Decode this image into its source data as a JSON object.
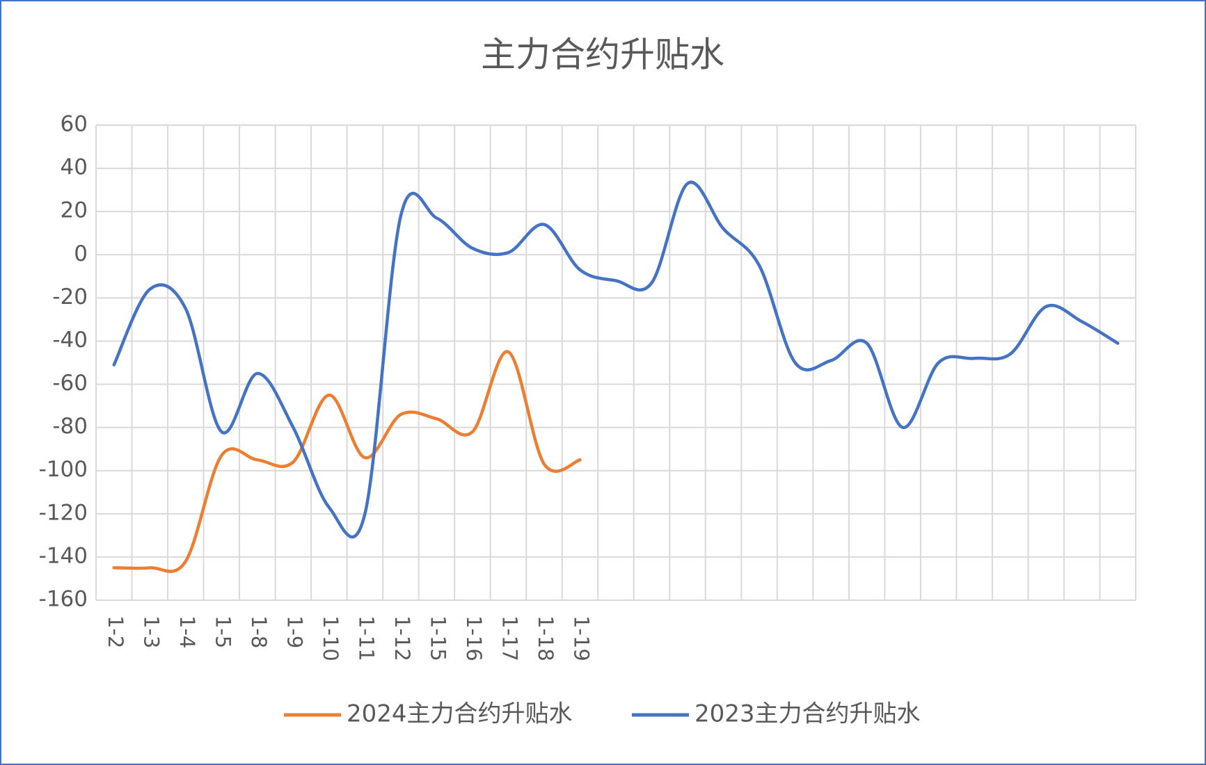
{
  "chart_data": {
    "type": "line",
    "title": "主力合约升贴水",
    "categories": [
      "1-2",
      "1-3",
      "1-4",
      "1-5",
      "1-8",
      "1-9",
      "1-10",
      "1-11",
      "1-12",
      "1-15",
      "1-16",
      "1-17",
      "1-18",
      "1-19",
      null,
      null,
      null,
      null,
      null,
      null,
      null,
      null,
      null,
      null,
      null,
      null,
      null,
      null,
      null
    ],
    "series": [
      {
        "name": "2024主力合约升贴水",
        "color": "#ed7d31",
        "values": [
          -145,
          -145,
          -142,
          -93,
          -95,
          -96,
          -65,
          -94,
          -74,
          -76,
          -82,
          -45,
          -97,
          -95,
          null,
          null,
          null,
          null,
          null,
          null,
          null,
          null,
          null,
          null,
          null,
          null,
          null,
          null,
          null
        ]
      },
      {
        "name": "2023主力合约升贴水",
        "color": "#4472c4",
        "values": [
          -51,
          -16,
          -25,
          -82,
          -55,
          -80,
          -117,
          -120,
          18,
          17,
          3,
          1,
          14,
          -7,
          -12,
          -13,
          33,
          12,
          -5,
          -50,
          -49,
          -41,
          -80,
          -50,
          -48,
          -46,
          -24,
          -31,
          -41
        ]
      }
    ],
    "ylim": [
      -160,
      60
    ],
    "yticks": [
      -160,
      -140,
      -120,
      -100,
      -80,
      -60,
      -40,
      -20,
      0,
      20,
      40,
      60
    ],
    "grid": true,
    "smooth": true,
    "legend": "bottom"
  }
}
